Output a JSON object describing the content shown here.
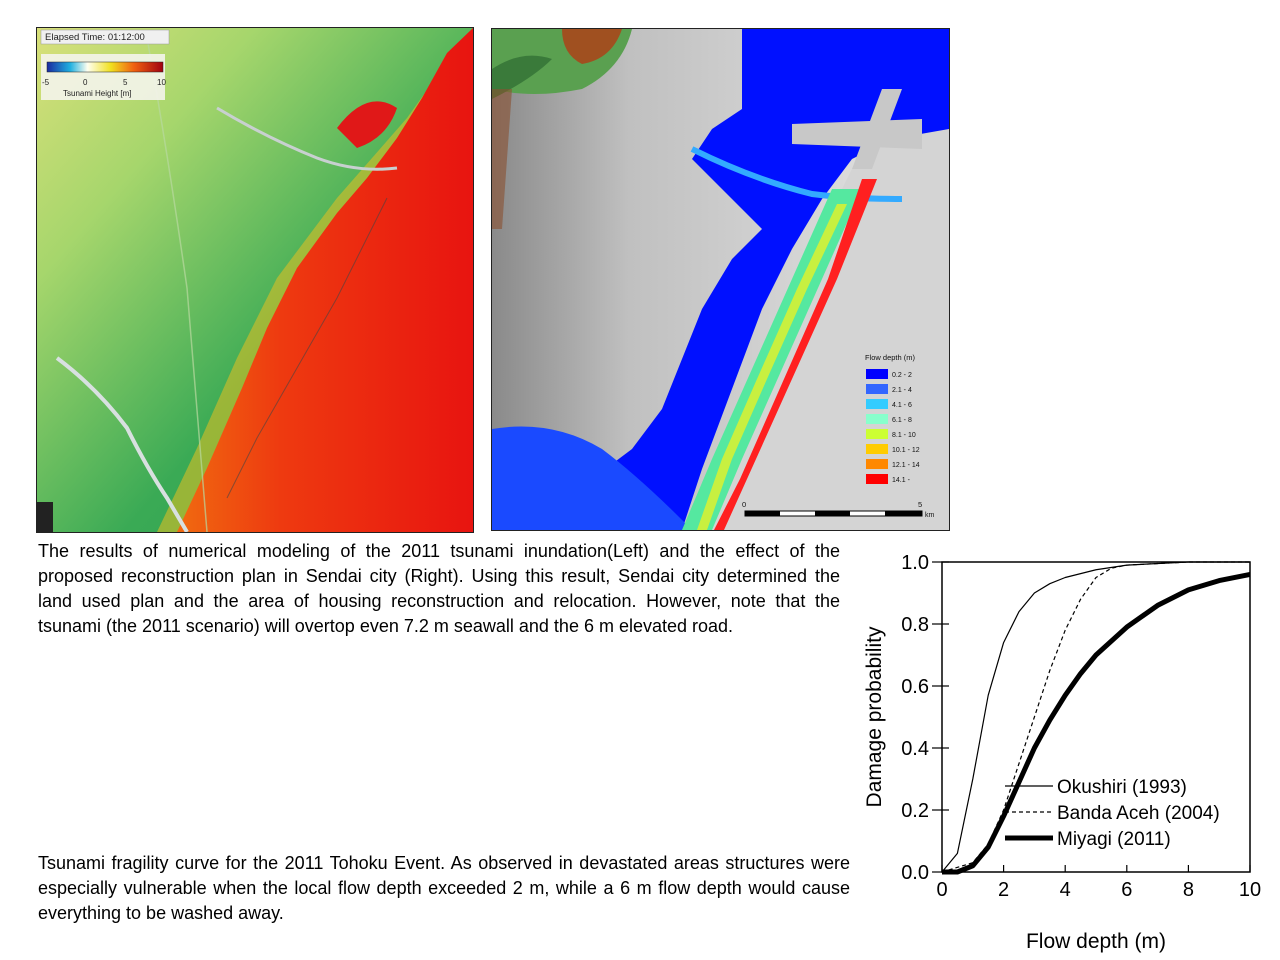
{
  "left_map": {
    "elapsed_time": "Elapsed Time: 01:12:00",
    "colorbar_ticks": [
      "-5",
      "0",
      "5",
      "10"
    ],
    "colorbar_label": "Tsunami Height [m]"
  },
  "right_map": {
    "legend_title": "Flow depth (m)",
    "legend": [
      {
        "label": "0.2 - 2",
        "color": "#0000ff"
      },
      {
        "label": "2.1 - 4",
        "color": "#3366ff"
      },
      {
        "label": "4.1 - 6",
        "color": "#33ccff"
      },
      {
        "label": "6.1 - 8",
        "color": "#88ffcc"
      },
      {
        "label": "8.1 - 10",
        "color": "#ccff33"
      },
      {
        "label": "10.1 - 12",
        "color": "#ffcc00"
      },
      {
        "label": "12.1 - 14",
        "color": "#ff8800"
      },
      {
        "label": "14.1 -",
        "color": "#ff0000"
      }
    ],
    "scalebar_start": "0",
    "scalebar_end": "5",
    "scalebar_unit": "km"
  },
  "captions": {
    "top": "The results of numerical modeling of the 2011 tsunami inundation(Left) and the effect of the proposed reconstruction plan in Sendai city (Right). Using this result, Sendai city determined the land used plan and the area of housing reconstruction and relocation. However, note that the tsunami (the 2011 scenario) will overtop even 7.2 m seawall and the 6 m elevated road.",
    "bottom": "Tsunami fragility curve for the 2011 Tohoku Event. As observed in devastated areas structures were especially vulnerable when the local flow depth exceeded 2 m, while a 6 m flow depth would cause everything to be washed away."
  },
  "chart_data": {
    "type": "line",
    "xlabel": "Flow depth (m)",
    "ylabel": "Damage probability",
    "xlim": [
      0,
      10
    ],
    "ylim": [
      0,
      1
    ],
    "xticks": [
      "0",
      "2",
      "4",
      "6",
      "8",
      "10"
    ],
    "yticks": [
      "0.0",
      "0.2",
      "0.4",
      "0.6",
      "0.8",
      "1.0"
    ],
    "legend_position": "lower-right",
    "series": [
      {
        "name": "Okushiri (1993)",
        "style": "thin-solid",
        "x": [
          0,
          0.5,
          1.0,
          1.5,
          2.0,
          2.5,
          3.0,
          3.5,
          4.0,
          5.0,
          6.0,
          8.0,
          10.0
        ],
        "y": [
          0,
          0.06,
          0.3,
          0.57,
          0.74,
          0.84,
          0.9,
          0.93,
          0.95,
          0.975,
          0.99,
          1.0,
          1.0
        ]
      },
      {
        "name": "Banda Aceh (2004)",
        "style": "dashed",
        "x": [
          0,
          1.0,
          1.5,
          2.0,
          2.5,
          3.0,
          3.5,
          4.0,
          4.5,
          5.0,
          5.5,
          6.0,
          8.0,
          10.0
        ],
        "y": [
          0,
          0.03,
          0.09,
          0.2,
          0.35,
          0.5,
          0.65,
          0.78,
          0.88,
          0.95,
          0.98,
          0.99,
          1.0,
          1.0
        ]
      },
      {
        "name": "Miyagi (2011)",
        "style": "thick-solid",
        "x": [
          0,
          0.5,
          1.0,
          1.5,
          2.0,
          2.5,
          3.0,
          3.5,
          4.0,
          4.5,
          5.0,
          6.0,
          7.0,
          8.0,
          9.0,
          10.0
        ],
        "y": [
          0,
          0.0,
          0.02,
          0.08,
          0.18,
          0.29,
          0.4,
          0.49,
          0.57,
          0.64,
          0.7,
          0.79,
          0.86,
          0.91,
          0.94,
          0.96
        ]
      }
    ]
  }
}
